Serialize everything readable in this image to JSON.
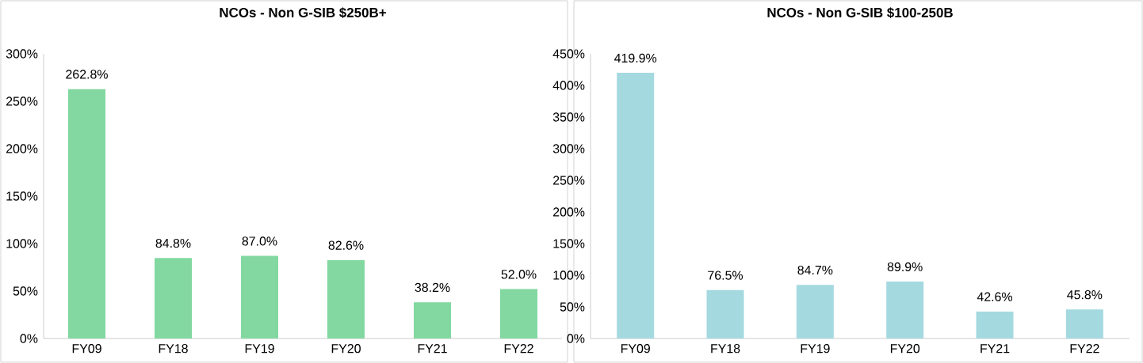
{
  "chart_data": [
    {
      "type": "bar",
      "title": "NCOs - Non G-SIB $250B+",
      "categories": [
        "FY09",
        "FY18",
        "FY19",
        "FY20",
        "FY21",
        "FY22"
      ],
      "values": [
        262.8,
        84.8,
        87.0,
        82.6,
        38.2,
        52.0
      ],
      "value_labels": [
        "262.8%",
        "84.8%",
        "87.0%",
        "82.6%",
        "38.2%",
        "52.0%"
      ],
      "color": "#82d8a0",
      "ylim": [
        0,
        300
      ],
      "yticks": [
        {
          "value": 0,
          "label": "0%"
        },
        {
          "value": 50,
          "label": "50%"
        },
        {
          "value": 100,
          "label": "100%"
        },
        {
          "value": 150,
          "label": "150%"
        },
        {
          "value": 200,
          "label": "200%"
        },
        {
          "value": 250,
          "label": "250%"
        },
        {
          "value": 300,
          "label": "300%"
        }
      ]
    },
    {
      "type": "bar",
      "title": "NCOs - Non G-SIB $100-250B",
      "categories": [
        "FY09",
        "FY18",
        "FY19",
        "FY20",
        "FY21",
        "FY22"
      ],
      "values": [
        419.9,
        76.5,
        84.7,
        89.9,
        42.6,
        45.8
      ],
      "value_labels": [
        "419.9%",
        "76.5%",
        "84.7%",
        "89.9%",
        "42.6%",
        "45.8%"
      ],
      "color": "#a5d9e0",
      "ylim": [
        0,
        450
      ],
      "yticks": [
        {
          "value": 0,
          "label": "0%"
        },
        {
          "value": 50,
          "label": "50%"
        },
        {
          "value": 100,
          "label": "100%"
        },
        {
          "value": 150,
          "label": "150%"
        },
        {
          "value": 200,
          "label": "200%"
        },
        {
          "value": 250,
          "label": "250%"
        },
        {
          "value": 300,
          "label": "300%"
        },
        {
          "value": 350,
          "label": "350%"
        },
        {
          "value": 400,
          "label": "400%"
        },
        {
          "value": 450,
          "label": "450%"
        }
      ]
    }
  ]
}
